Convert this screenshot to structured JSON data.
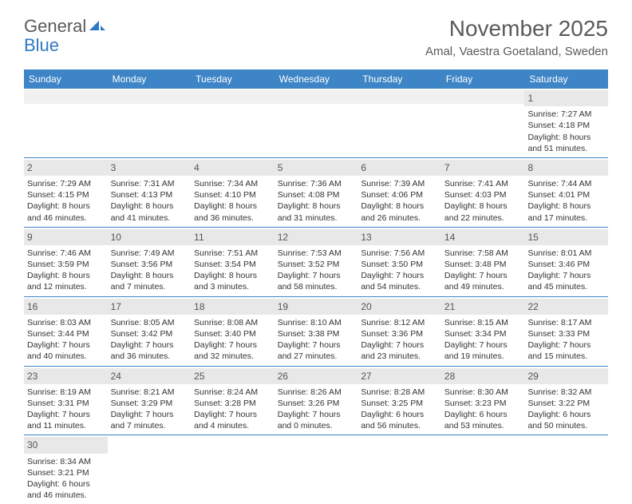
{
  "logo": {
    "part1": "General",
    "part2": "Blue"
  },
  "title": "November 2025",
  "location": "Amal, Vaestra Goetaland, Sweden",
  "colors": {
    "header_bg": "#3d85c6",
    "header_text": "#ffffff",
    "daynum_bg": "#e8e8e8",
    "border": "#3d85c6",
    "text": "#333333",
    "title": "#5a5a5a"
  },
  "weekdays": [
    "Sunday",
    "Monday",
    "Tuesday",
    "Wednesday",
    "Thursday",
    "Friday",
    "Saturday"
  ],
  "weeks": [
    [
      {
        "n": "",
        "sr": "",
        "ss": "",
        "dl": ""
      },
      {
        "n": "",
        "sr": "",
        "ss": "",
        "dl": ""
      },
      {
        "n": "",
        "sr": "",
        "ss": "",
        "dl": ""
      },
      {
        "n": "",
        "sr": "",
        "ss": "",
        "dl": ""
      },
      {
        "n": "",
        "sr": "",
        "ss": "",
        "dl": ""
      },
      {
        "n": "",
        "sr": "",
        "ss": "",
        "dl": ""
      },
      {
        "n": "1",
        "sr": "Sunrise: 7:27 AM",
        "ss": "Sunset: 4:18 PM",
        "dl": "Daylight: 8 hours and 51 minutes."
      }
    ],
    [
      {
        "n": "2",
        "sr": "Sunrise: 7:29 AM",
        "ss": "Sunset: 4:15 PM",
        "dl": "Daylight: 8 hours and 46 minutes."
      },
      {
        "n": "3",
        "sr": "Sunrise: 7:31 AM",
        "ss": "Sunset: 4:13 PM",
        "dl": "Daylight: 8 hours and 41 minutes."
      },
      {
        "n": "4",
        "sr": "Sunrise: 7:34 AM",
        "ss": "Sunset: 4:10 PM",
        "dl": "Daylight: 8 hours and 36 minutes."
      },
      {
        "n": "5",
        "sr": "Sunrise: 7:36 AM",
        "ss": "Sunset: 4:08 PM",
        "dl": "Daylight: 8 hours and 31 minutes."
      },
      {
        "n": "6",
        "sr": "Sunrise: 7:39 AM",
        "ss": "Sunset: 4:06 PM",
        "dl": "Daylight: 8 hours and 26 minutes."
      },
      {
        "n": "7",
        "sr": "Sunrise: 7:41 AM",
        "ss": "Sunset: 4:03 PM",
        "dl": "Daylight: 8 hours and 22 minutes."
      },
      {
        "n": "8",
        "sr": "Sunrise: 7:44 AM",
        "ss": "Sunset: 4:01 PM",
        "dl": "Daylight: 8 hours and 17 minutes."
      }
    ],
    [
      {
        "n": "9",
        "sr": "Sunrise: 7:46 AM",
        "ss": "Sunset: 3:59 PM",
        "dl": "Daylight: 8 hours and 12 minutes."
      },
      {
        "n": "10",
        "sr": "Sunrise: 7:49 AM",
        "ss": "Sunset: 3:56 PM",
        "dl": "Daylight: 8 hours and 7 minutes."
      },
      {
        "n": "11",
        "sr": "Sunrise: 7:51 AM",
        "ss": "Sunset: 3:54 PM",
        "dl": "Daylight: 8 hours and 3 minutes."
      },
      {
        "n": "12",
        "sr": "Sunrise: 7:53 AM",
        "ss": "Sunset: 3:52 PM",
        "dl": "Daylight: 7 hours and 58 minutes."
      },
      {
        "n": "13",
        "sr": "Sunrise: 7:56 AM",
        "ss": "Sunset: 3:50 PM",
        "dl": "Daylight: 7 hours and 54 minutes."
      },
      {
        "n": "14",
        "sr": "Sunrise: 7:58 AM",
        "ss": "Sunset: 3:48 PM",
        "dl": "Daylight: 7 hours and 49 minutes."
      },
      {
        "n": "15",
        "sr": "Sunrise: 8:01 AM",
        "ss": "Sunset: 3:46 PM",
        "dl": "Daylight: 7 hours and 45 minutes."
      }
    ],
    [
      {
        "n": "16",
        "sr": "Sunrise: 8:03 AM",
        "ss": "Sunset: 3:44 PM",
        "dl": "Daylight: 7 hours and 40 minutes."
      },
      {
        "n": "17",
        "sr": "Sunrise: 8:05 AM",
        "ss": "Sunset: 3:42 PM",
        "dl": "Daylight: 7 hours and 36 minutes."
      },
      {
        "n": "18",
        "sr": "Sunrise: 8:08 AM",
        "ss": "Sunset: 3:40 PM",
        "dl": "Daylight: 7 hours and 32 minutes."
      },
      {
        "n": "19",
        "sr": "Sunrise: 8:10 AM",
        "ss": "Sunset: 3:38 PM",
        "dl": "Daylight: 7 hours and 27 minutes."
      },
      {
        "n": "20",
        "sr": "Sunrise: 8:12 AM",
        "ss": "Sunset: 3:36 PM",
        "dl": "Daylight: 7 hours and 23 minutes."
      },
      {
        "n": "21",
        "sr": "Sunrise: 8:15 AM",
        "ss": "Sunset: 3:34 PM",
        "dl": "Daylight: 7 hours and 19 minutes."
      },
      {
        "n": "22",
        "sr": "Sunrise: 8:17 AM",
        "ss": "Sunset: 3:33 PM",
        "dl": "Daylight: 7 hours and 15 minutes."
      }
    ],
    [
      {
        "n": "23",
        "sr": "Sunrise: 8:19 AM",
        "ss": "Sunset: 3:31 PM",
        "dl": "Daylight: 7 hours and 11 minutes."
      },
      {
        "n": "24",
        "sr": "Sunrise: 8:21 AM",
        "ss": "Sunset: 3:29 PM",
        "dl": "Daylight: 7 hours and 7 minutes."
      },
      {
        "n": "25",
        "sr": "Sunrise: 8:24 AM",
        "ss": "Sunset: 3:28 PM",
        "dl": "Daylight: 7 hours and 4 minutes."
      },
      {
        "n": "26",
        "sr": "Sunrise: 8:26 AM",
        "ss": "Sunset: 3:26 PM",
        "dl": "Daylight: 7 hours and 0 minutes."
      },
      {
        "n": "27",
        "sr": "Sunrise: 8:28 AM",
        "ss": "Sunset: 3:25 PM",
        "dl": "Daylight: 6 hours and 56 minutes."
      },
      {
        "n": "28",
        "sr": "Sunrise: 8:30 AM",
        "ss": "Sunset: 3:23 PM",
        "dl": "Daylight: 6 hours and 53 minutes."
      },
      {
        "n": "29",
        "sr": "Sunrise: 8:32 AM",
        "ss": "Sunset: 3:22 PM",
        "dl": "Daylight: 6 hours and 50 minutes."
      }
    ],
    [
      {
        "n": "30",
        "sr": "Sunrise: 8:34 AM",
        "ss": "Sunset: 3:21 PM",
        "dl": "Daylight: 6 hours and 46 minutes."
      },
      {
        "n": "",
        "sr": "",
        "ss": "",
        "dl": ""
      },
      {
        "n": "",
        "sr": "",
        "ss": "",
        "dl": ""
      },
      {
        "n": "",
        "sr": "",
        "ss": "",
        "dl": ""
      },
      {
        "n": "",
        "sr": "",
        "ss": "",
        "dl": ""
      },
      {
        "n": "",
        "sr": "",
        "ss": "",
        "dl": ""
      },
      {
        "n": "",
        "sr": "",
        "ss": "",
        "dl": ""
      }
    ]
  ]
}
